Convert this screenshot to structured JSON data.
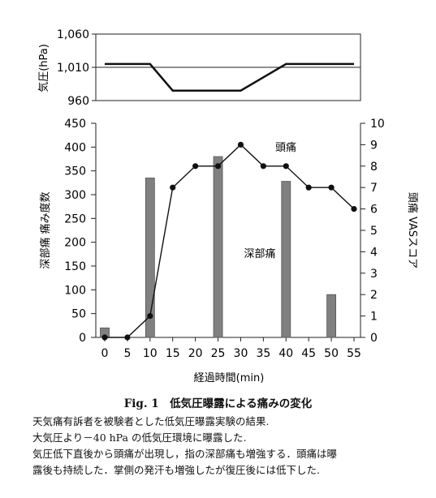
{
  "chart_data": [
    {
      "type": "line",
      "ylabel": "気圧(hPa)",
      "ylim": [
        960,
        1060
      ],
      "yticks": [
        "1,060",
        "1,010",
        "960"
      ],
      "reference_line": 1010,
      "x": [
        0,
        5,
        10,
        15,
        20,
        25,
        30,
        35,
        40,
        45,
        50,
        55
      ],
      "values": [
        1015,
        1015,
        1015,
        975,
        975,
        975,
        975,
        995,
        1015,
        1015,
        1015,
        1015
      ],
      "grid": false
    },
    {
      "type": "bar+line",
      "xlabel": "経過時間(min)",
      "categories": [
        "0",
        "5",
        "10",
        "15",
        "20",
        "25",
        "30",
        "35",
        "40",
        "45",
        "50",
        "55"
      ],
      "bar_series": {
        "name": "深部痛",
        "x": [
          0,
          10,
          25,
          40,
          50
        ],
        "values": [
          20,
          335,
          380,
          328,
          90
        ],
        "axis_label": "深部痛 痛み度数",
        "ylim": [
          0,
          450
        ],
        "yticks": [
          "0",
          "50",
          "100",
          "150",
          "200",
          "250",
          "300",
          "350",
          "400",
          "450"
        ]
      },
      "line_series": {
        "name": "頭痛",
        "x": [
          0,
          5,
          10,
          15,
          20,
          25,
          30,
          35,
          40,
          45,
          50,
          55
        ],
        "values": [
          0,
          0,
          1,
          7,
          8,
          8,
          9,
          8,
          8,
          7,
          7,
          6
        ],
        "axis_label": "頭痛 VASスコア",
        "ylim": [
          0,
          10
        ],
        "yticks": [
          "0",
          "1",
          "2",
          "3",
          "4",
          "5",
          "6",
          "7",
          "8",
          "9",
          "10"
        ]
      },
      "grid": false
    }
  ],
  "caption": {
    "title": "Fig. 1　低気圧曝露による痛みの変化",
    "lines": [
      "天気痛有訴者を被験者とした低気圧曝露実験の結果.",
      "大気圧より－40 hPa の低気圧環境に曝露した.",
      "気圧低下直後から頭痛が出現し，指の深部痛も増強する．頭痛は曝",
      "露後も持続した．掌側の発汗も増強したが復圧後には低下した."
    ]
  },
  "colors": {
    "bar_fill": "#808080",
    "line": "#111111",
    "axis": "#222222"
  }
}
